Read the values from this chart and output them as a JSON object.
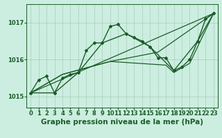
{
  "background_color": "#cceee0",
  "grid_color": "#aaccbb",
  "line_color": "#1a5c28",
  "xlim": [
    -0.5,
    23.5
  ],
  "ylim": [
    1014.7,
    1017.5
  ],
  "yticks": [
    1015,
    1016,
    1017
  ],
  "xticks": [
    0,
    1,
    2,
    3,
    4,
    5,
    6,
    7,
    8,
    9,
    10,
    11,
    12,
    13,
    14,
    15,
    16,
    17,
    18,
    19,
    20,
    21,
    22,
    23
  ],
  "xlabel": "Graphe pression niveau de la mer (hPa)",
  "xlabel_fontsize": 7.5,
  "tick_fontsize": 6,
  "series": [
    {
      "x": [
        0,
        1,
        2,
        3,
        4,
        5,
        6,
        7,
        8,
        9,
        10,
        11,
        12,
        13,
        14,
        15,
        16,
        17,
        18,
        19,
        20,
        21,
        22,
        23
      ],
      "y": [
        1015.1,
        1015.45,
        1015.55,
        1015.1,
        1015.5,
        1015.6,
        1015.65,
        1016.25,
        1016.45,
        1016.45,
        1016.9,
        1016.95,
        1016.7,
        1016.6,
        1016.5,
        1016.35,
        1016.05,
        1016.05,
        1015.7,
        1015.8,
        1016.0,
        1016.5,
        1017.1,
        1017.25
      ],
      "marker": "D",
      "markersize": 2.0,
      "linewidth": 1.0
    },
    {
      "x": [
        0,
        23
      ],
      "y": [
        1015.1,
        1017.25
      ],
      "marker": null,
      "markersize": 0,
      "linewidth": 0.9
    },
    {
      "x": [
        0,
        4,
        10,
        16,
        23
      ],
      "y": [
        1015.1,
        1015.6,
        1015.95,
        1016.2,
        1017.25
      ],
      "marker": null,
      "markersize": 0,
      "linewidth": 0.9
    },
    {
      "x": [
        0,
        4,
        10,
        17,
        18,
        20,
        23
      ],
      "y": [
        1015.1,
        1015.6,
        1015.95,
        1015.85,
        1015.65,
        1015.9,
        1017.25
      ],
      "marker": null,
      "markersize": 0,
      "linewidth": 0.9
    },
    {
      "x": [
        0,
        3,
        6,
        9,
        12,
        15,
        18,
        21,
        23
      ],
      "y": [
        1015.1,
        1015.1,
        1015.65,
        1016.45,
        1016.7,
        1016.35,
        1015.7,
        1016.5,
        1017.25
      ],
      "marker": "s",
      "markersize": 2.0,
      "linewidth": 1.0
    }
  ]
}
